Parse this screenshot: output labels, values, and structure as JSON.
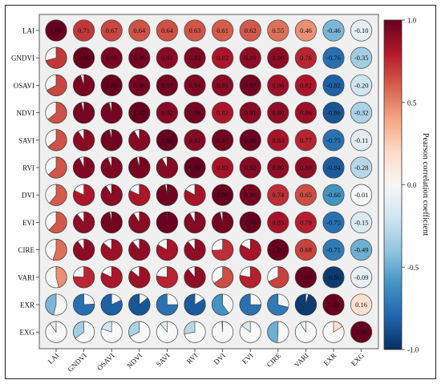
{
  "chart_data": {
    "type": "heatmap",
    "style": "lower-pie upper-circle correlation matrix",
    "variables": [
      "LAI",
      "GNDVI",
      "OSAVI",
      "NDVI",
      "SAVI",
      "RVI",
      "DVI",
      "EVI",
      "CIRE",
      "VARI",
      "EXR",
      "EXG"
    ],
    "matrix": [
      [
        1.0,
        0.71,
        0.67,
        0.64,
        0.64,
        0.63,
        0.61,
        0.62,
        0.55,
        0.46,
        -0.46,
        -0.1
      ],
      [
        0.71,
        1.0,
        0.95,
        0.96,
        0.91,
        0.93,
        0.82,
        0.89,
        0.9,
        0.76,
        -0.76,
        -0.35
      ],
      [
        0.67,
        0.95,
        1.0,
        0.96,
        0.97,
        0.94,
        0.91,
        0.97,
        0.86,
        0.82,
        -0.82,
        -0.2
      ],
      [
        0.64,
        0.96,
        0.96,
        1.0,
        0.92,
        0.96,
        0.82,
        0.91,
        0.89,
        0.86,
        -0.86,
        -0.32
      ],
      [
        0.64,
        0.91,
        0.97,
        0.92,
        1.0,
        0.92,
        0.97,
        0.99,
        0.83,
        0.77,
        -0.75,
        -0.11
      ],
      [
        0.63,
        0.93,
        0.94,
        0.96,
        0.92,
        1.0,
        0.83,
        0.92,
        0.89,
        0.89,
        -0.84,
        -0.28
      ],
      [
        0.61,
        0.82,
        0.91,
        0.82,
        0.97,
        0.83,
        1.0,
        0.96,
        0.74,
        0.65,
        -0.6,
        -0.01
      ],
      [
        0.62,
        0.89,
        0.97,
        0.91,
        0.99,
        0.92,
        0.96,
        1.0,
        0.83,
        0.78,
        -0.75,
        -0.15
      ],
      [
        0.55,
        0.9,
        0.86,
        0.89,
        0.83,
        0.89,
        0.74,
        0.83,
        1.0,
        0.68,
        -0.71,
        -0.49
      ],
      [
        0.46,
        0.76,
        0.82,
        0.86,
        0.77,
        0.89,
        0.65,
        0.78,
        0.68,
        1.0,
        -0.96,
        -0.09
      ],
      [
        -0.46,
        -0.76,
        -0.82,
        -0.86,
        -0.75,
        -0.84,
        -0.6,
        -0.75,
        -0.71,
        -0.96,
        1.0,
        0.16
      ],
      [
        -0.1,
        -0.35,
        -0.2,
        -0.32,
        -0.11,
        -0.28,
        -0.01,
        -0.15,
        -0.49,
        -0.09,
        0.16,
        1.0
      ]
    ],
    "colorbar": {
      "label": "Pearson correlation coefficient",
      "range": [
        -1.0,
        1.0
      ],
      "ticks": [
        "1.0",
        "0.5",
        "0.0",
        "-0.5",
        "-1.0"
      ],
      "tick_values": [
        1.0,
        0.5,
        0.0,
        -0.5,
        -1.0
      ],
      "colors": [
        "#67001f",
        "#b2182b",
        "#d6604d",
        "#f4a582",
        "#fddbc7",
        "#f7f7f7",
        "#d1e5f0",
        "#92c5de",
        "#4393c3",
        "#2166ac",
        "#053061"
      ]
    }
  }
}
